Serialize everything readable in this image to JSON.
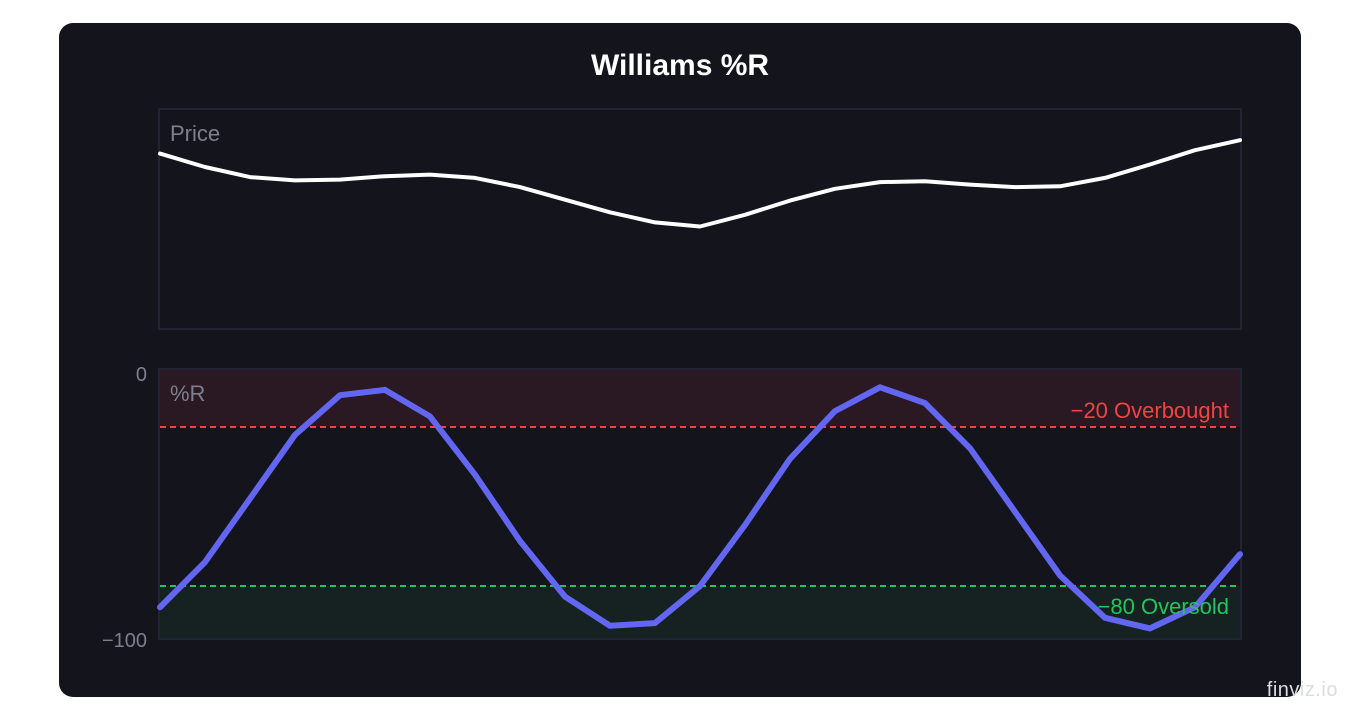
{
  "watermark": "finviz.io",
  "colors": {
    "card": "#14141d",
    "panel_border": "#232433",
    "price_line": "#ffffff",
    "wr_line": "#6366f1",
    "overbought": "#ef4444",
    "oversold": "#22c55e",
    "overbought_zone": "#2a1822",
    "oversold_zone": "#152221",
    "muted_text": "#7c7f8e"
  },
  "chart_data": {
    "type": "line",
    "title": "Williams %R",
    "panels": [
      {
        "id": "price",
        "label": "Price",
        "series": [
          {
            "values": [
              104.4,
              103.6,
              103.0,
              102.8,
              102.85,
              103.05,
              103.15,
              102.95,
              102.4,
              101.65,
              100.9,
              100.3,
              100.05,
              100.75,
              101.6,
              102.3,
              102.7,
              102.75,
              102.55,
              102.4,
              102.45,
              102.95,
              103.75,
              104.6,
              105.2
            ]
          }
        ],
        "ylim": [
          94,
          107
        ]
      },
      {
        "id": "williams_r",
        "label": "%R",
        "series": [
          {
            "values": [
              -88,
              -71,
              -47,
              -23,
              -8,
              -6,
              -16,
              -38,
              -63,
              -84,
              -95,
              -94,
              -80,
              -57,
              -32,
              -14,
              -5,
              -11,
              -28,
              -52,
              -76,
              -92,
              -96,
              -88,
              -68
            ]
          }
        ],
        "ylim": [
          -100,
          0
        ],
        "yticks": [
          "0",
          "−100"
        ],
        "reference_lines": [
          {
            "value": -20,
            "label": "−20 Overbought",
            "color": "#ef4444"
          },
          {
            "value": -80,
            "label": "−80 Oversold",
            "color": "#22c55e"
          }
        ]
      }
    ],
    "grid": false,
    "legend": "none"
  }
}
